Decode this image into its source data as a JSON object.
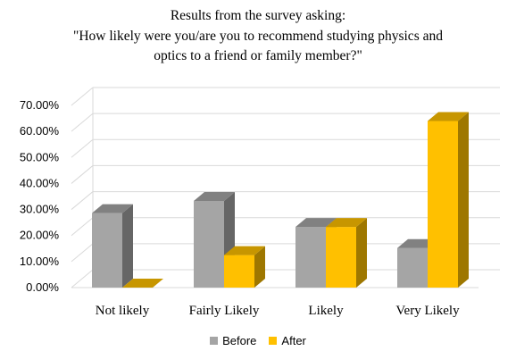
{
  "chart_data": {
    "type": "bar",
    "title_lines": [
      "Results from the survey asking:",
      "\"How likely were you/are you to recommend studying physics and",
      "optics to a friend or family member?\""
    ],
    "categories": [
      "Not likely",
      "Fairly Likely",
      "Likely",
      "Very Likely"
    ],
    "series": [
      {
        "name": "Before",
        "values": [
          28.6,
          33.3,
          23.3,
          15.2
        ],
        "color": "#a5a5a5"
      },
      {
        "name": "After",
        "values": [
          0.0,
          12.5,
          23.3,
          64.0
        ],
        "color": "#ffc000"
      }
    ],
    "ylim": [
      0,
      70
    ],
    "yticks": [
      "0.00%",
      "10.00%",
      "20.00%",
      "30.00%",
      "40.00%",
      "50.00%",
      "60.00%",
      "70.00%"
    ],
    "grid": true,
    "legend_position": "bottom",
    "style": "3d-clustered-column"
  }
}
